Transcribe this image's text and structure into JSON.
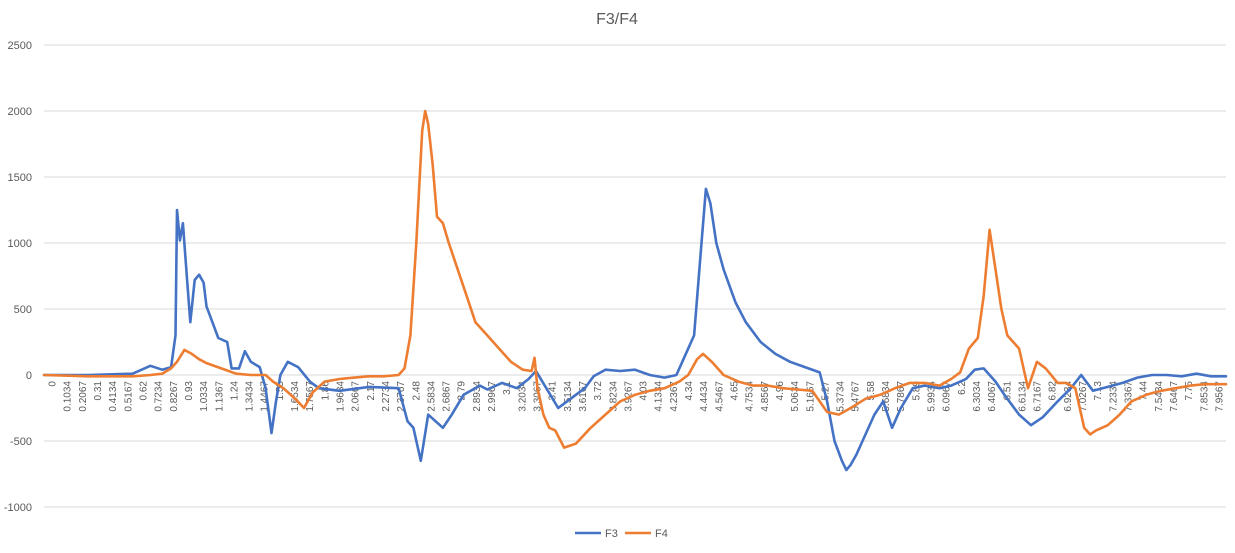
{
  "chart_data": {
    "type": "line",
    "title": "F3/F4",
    "xlabel": "",
    "ylabel": "",
    "ylim": [
      -1000,
      2500
    ],
    "yticks": [
      -1000,
      -500,
      0,
      500,
      1000,
      1500,
      2000,
      2500
    ],
    "xlim": [
      0,
      8.0
    ],
    "xtick_labels": [
      "0",
      "0.1034",
      "0.2067",
      "0.31",
      "0.4134",
      "0.5167",
      "0.62",
      "0.7234",
      "0.8267",
      "0.93",
      "1.0334",
      "1.1367",
      "1.24",
      "1.3434",
      "1.4467",
      "1.55",
      "1.6534",
      "1.7567",
      "1.86",
      "1.9634",
      "2.0667",
      "2.17",
      "2.2734",
      "2.3767",
      "2.48",
      "2.5834",
      "2.6867",
      "2.79",
      "2.8934",
      "2.9967",
      "3.1",
      "3.2034",
      "3.3067",
      "3.41",
      "3.5134",
      "3.6167",
      "3.72",
      "3.8234",
      "3.9267",
      "4.03",
      "4.1334",
      "4.2367",
      "4.34",
      "4.4434",
      "4.5467",
      "4.65",
      "4.7534",
      "4.8567",
      "4.96",
      "5.0634",
      "5.1667",
      "5.27",
      "5.3734",
      "5.4767",
      "5.58",
      "5.6834",
      "5.7867",
      "5.89",
      "5.9934",
      "6.0967",
      "6.2",
      "6.3034",
      "6.4067",
      "6.51",
      "6.6134",
      "6.7167",
      "6.82",
      "6.9234",
      "7.0267",
      "7.13",
      "7.2334",
      "7.3367",
      "7.44",
      "7.5434",
      "7.6467",
      "7.75",
      "7.8534",
      "7.9567"
    ],
    "grid": true,
    "legend": "bottom",
    "series": [
      {
        "name": "F3",
        "color": "#4472C4",
        "points": [
          [
            0,
            0
          ],
          [
            0.3,
            0
          ],
          [
            0.6,
            10
          ],
          [
            0.72,
            70
          ],
          [
            0.8,
            40
          ],
          [
            0.86,
            60
          ],
          [
            0.89,
            300
          ],
          [
            0.9,
            1250
          ],
          [
            0.92,
            1020
          ],
          [
            0.94,
            1150
          ],
          [
            0.97,
            700
          ],
          [
            0.99,
            400
          ],
          [
            1.02,
            720
          ],
          [
            1.05,
            760
          ],
          [
            1.08,
            700
          ],
          [
            1.1,
            520
          ],
          [
            1.14,
            400
          ],
          [
            1.18,
            280
          ],
          [
            1.24,
            250
          ],
          [
            1.27,
            50
          ],
          [
            1.32,
            50
          ],
          [
            1.36,
            180
          ],
          [
            1.4,
            100
          ],
          [
            1.46,
            60
          ],
          [
            1.5,
            -100
          ],
          [
            1.54,
            -440
          ],
          [
            1.57,
            -200
          ],
          [
            1.6,
            0
          ],
          [
            1.65,
            100
          ],
          [
            1.72,
            60
          ],
          [
            1.8,
            -50
          ],
          [
            1.86,
            -100
          ],
          [
            2.0,
            -120
          ],
          [
            2.2,
            -90
          ],
          [
            2.4,
            -100
          ],
          [
            2.46,
            -350
          ],
          [
            2.5,
            -400
          ],
          [
            2.55,
            -650
          ],
          [
            2.6,
            -300
          ],
          [
            2.65,
            -350
          ],
          [
            2.7,
            -400
          ],
          [
            2.76,
            -300
          ],
          [
            2.84,
            -150
          ],
          [
            2.95,
            -80
          ],
          [
            3.0,
            -110
          ],
          [
            3.1,
            -60
          ],
          [
            3.2,
            -100
          ],
          [
            3.28,
            -30
          ],
          [
            3.33,
            30
          ],
          [
            3.4,
            -100
          ],
          [
            3.48,
            -250
          ],
          [
            3.54,
            -200
          ],
          [
            3.6,
            -150
          ],
          [
            3.66,
            -100
          ],
          [
            3.72,
            -10
          ],
          [
            3.8,
            40
          ],
          [
            3.9,
            30
          ],
          [
            4.0,
            40
          ],
          [
            4.1,
            0
          ],
          [
            4.2,
            -20
          ],
          [
            4.28,
            0
          ],
          [
            4.32,
            100
          ],
          [
            4.4,
            300
          ],
          [
            4.45,
            1000
          ],
          [
            4.48,
            1410
          ],
          [
            4.51,
            1300
          ],
          [
            4.55,
            1000
          ],
          [
            4.6,
            800
          ],
          [
            4.68,
            550
          ],
          [
            4.75,
            400
          ],
          [
            4.85,
            250
          ],
          [
            4.95,
            160
          ],
          [
            5.05,
            100
          ],
          [
            5.15,
            60
          ],
          [
            5.25,
            20
          ],
          [
            5.3,
            -200
          ],
          [
            5.35,
            -500
          ],
          [
            5.4,
            -650
          ],
          [
            5.43,
            -720
          ],
          [
            5.46,
            -680
          ],
          [
            5.5,
            -600
          ],
          [
            5.56,
            -450
          ],
          [
            5.62,
            -300
          ],
          [
            5.68,
            -200
          ],
          [
            5.74,
            -400
          ],
          [
            5.8,
            -250
          ],
          [
            5.88,
            -100
          ],
          [
            5.96,
            -80
          ],
          [
            6.06,
            -100
          ],
          [
            6.14,
            -80
          ],
          [
            6.24,
            -30
          ],
          [
            6.3,
            40
          ],
          [
            6.36,
            50
          ],
          [
            6.44,
            -50
          ],
          [
            6.5,
            -150
          ],
          [
            6.6,
            -300
          ],
          [
            6.68,
            -380
          ],
          [
            6.76,
            -320
          ],
          [
            6.86,
            -200
          ],
          [
            6.95,
            -100
          ],
          [
            7.02,
            0
          ],
          [
            7.1,
            -120
          ],
          [
            7.2,
            -90
          ],
          [
            7.3,
            -60
          ],
          [
            7.4,
            -20
          ],
          [
            7.5,
            0
          ],
          [
            7.6,
            0
          ],
          [
            7.7,
            -10
          ],
          [
            7.8,
            10
          ],
          [
            7.9,
            -10
          ],
          [
            8.0,
            -10
          ]
        ]
      },
      {
        "name": "F4",
        "color": "#ED7D31",
        "points": [
          [
            0,
            0
          ],
          [
            0.3,
            -10
          ],
          [
            0.6,
            -10
          ],
          [
            0.72,
            0
          ],
          [
            0.8,
            10
          ],
          [
            0.86,
            50
          ],
          [
            0.9,
            100
          ],
          [
            0.95,
            190
          ],
          [
            1.0,
            160
          ],
          [
            1.05,
            120
          ],
          [
            1.1,
            90
          ],
          [
            1.2,
            50
          ],
          [
            1.3,
            10
          ],
          [
            1.4,
            0
          ],
          [
            1.5,
            0
          ],
          [
            1.55,
            -50
          ],
          [
            1.62,
            -100
          ],
          [
            1.7,
            -180
          ],
          [
            1.76,
            -250
          ],
          [
            1.82,
            -130
          ],
          [
            1.9,
            -50
          ],
          [
            2.0,
            -30
          ],
          [
            2.1,
            -20
          ],
          [
            2.2,
            -10
          ],
          [
            2.3,
            -10
          ],
          [
            2.4,
            0
          ],
          [
            2.44,
            50
          ],
          [
            2.48,
            300
          ],
          [
            2.52,
            1000
          ],
          [
            2.56,
            1850
          ],
          [
            2.58,
            2000
          ],
          [
            2.6,
            1900
          ],
          [
            2.63,
            1600
          ],
          [
            2.66,
            1200
          ],
          [
            2.7,
            1150
          ],
          [
            2.74,
            1000
          ],
          [
            2.8,
            800
          ],
          [
            2.86,
            600
          ],
          [
            2.92,
            400
          ],
          [
            3.0,
            300
          ],
          [
            3.08,
            200
          ],
          [
            3.16,
            100
          ],
          [
            3.24,
            40
          ],
          [
            3.3,
            30
          ],
          [
            3.32,
            130
          ],
          [
            3.34,
            -100
          ],
          [
            3.38,
            -300
          ],
          [
            3.42,
            -400
          ],
          [
            3.46,
            -420
          ],
          [
            3.52,
            -550
          ],
          [
            3.6,
            -520
          ],
          [
            3.7,
            -400
          ],
          [
            3.8,
            -300
          ],
          [
            3.9,
            -200
          ],
          [
            4.0,
            -150
          ],
          [
            4.1,
            -120
          ],
          [
            4.2,
            -100
          ],
          [
            4.3,
            -50
          ],
          [
            4.36,
            0
          ],
          [
            4.42,
            120
          ],
          [
            4.46,
            160
          ],
          [
            4.52,
            100
          ],
          [
            4.6,
            0
          ],
          [
            4.7,
            -50
          ],
          [
            4.8,
            -80
          ],
          [
            4.9,
            -80
          ],
          [
            5.0,
            -100
          ],
          [
            5.1,
            -110
          ],
          [
            5.2,
            -120
          ],
          [
            5.3,
            -280
          ],
          [
            5.38,
            -300
          ],
          [
            5.46,
            -250
          ],
          [
            5.56,
            -180
          ],
          [
            5.66,
            -150
          ],
          [
            5.76,
            -100
          ],
          [
            5.86,
            -60
          ],
          [
            5.96,
            -60
          ],
          [
            6.06,
            -80
          ],
          [
            6.14,
            -30
          ],
          [
            6.2,
            20
          ],
          [
            6.26,
            200
          ],
          [
            6.32,
            280
          ],
          [
            6.36,
            600
          ],
          [
            6.4,
            1100
          ],
          [
            6.44,
            800
          ],
          [
            6.48,
            500
          ],
          [
            6.52,
            300
          ],
          [
            6.6,
            200
          ],
          [
            6.66,
            -100
          ],
          [
            6.72,
            100
          ],
          [
            6.78,
            50
          ],
          [
            6.86,
            -60
          ],
          [
            6.92,
            -60
          ],
          [
            6.98,
            -100
          ],
          [
            7.04,
            -400
          ],
          [
            7.08,
            -450
          ],
          [
            7.12,
            -420
          ],
          [
            7.2,
            -380
          ],
          [
            7.28,
            -300
          ],
          [
            7.36,
            -200
          ],
          [
            7.46,
            -150
          ],
          [
            7.56,
            -120
          ],
          [
            7.66,
            -100
          ],
          [
            7.76,
            -80
          ],
          [
            7.86,
            -70
          ],
          [
            8.0,
            -70
          ]
        ]
      }
    ]
  }
}
